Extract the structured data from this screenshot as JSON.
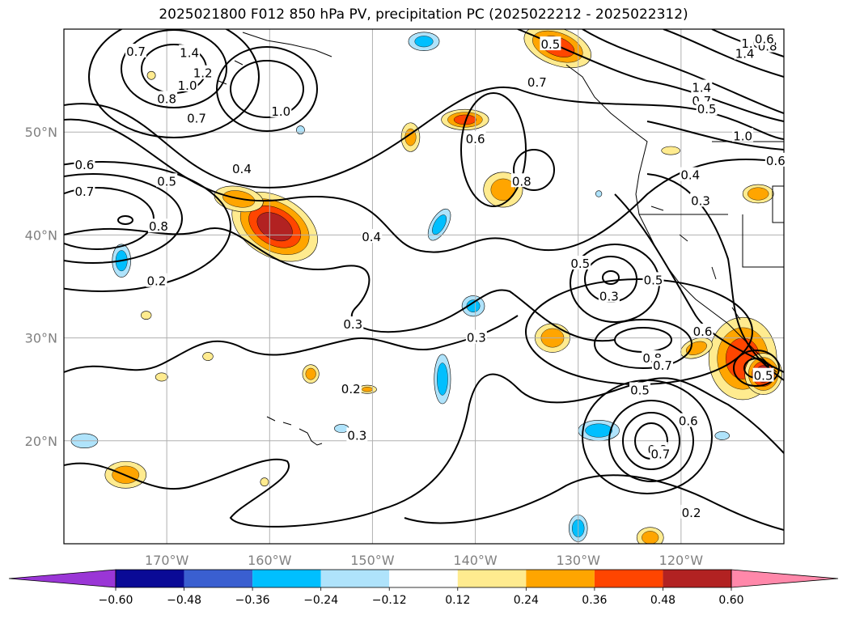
{
  "title": "2025021800 F012 850 hPa PV, precipitation PC (2025022212 - 2025022312)",
  "map": {
    "lon_range": [
      -180,
      -110
    ],
    "lat_range": [
      10,
      60
    ],
    "lon_ticks": [
      {
        "value": -170,
        "label": "170°W"
      },
      {
        "value": -160,
        "label": "160°W"
      },
      {
        "value": -150,
        "label": "150°W"
      },
      {
        "value": -140,
        "label": "140°W"
      },
      {
        "value": -130,
        "label": "130°W"
      },
      {
        "value": -120,
        "label": "120°W"
      }
    ],
    "lat_ticks": [
      {
        "value": 20,
        "label": "20°N"
      },
      {
        "value": 30,
        "label": "30°N"
      },
      {
        "value": 40,
        "label": "40°N"
      },
      {
        "value": 50,
        "label": "50°N"
      }
    ],
    "grid": true,
    "contour_labels": [
      {
        "text": "1.4",
        "lon": -167.8,
        "lat": 57.7
      },
      {
        "text": "1.2",
        "lon": -166.5,
        "lat": 55.7
      },
      {
        "text": "1.0",
        "lon": -168.0,
        "lat": 54.5
      },
      {
        "text": "0.8",
        "lon": -170.0,
        "lat": 53.2
      },
      {
        "text": "0.7",
        "lon": -173.0,
        "lat": 57.8
      },
      {
        "text": "0.7",
        "lon": -167.1,
        "lat": 51.3
      },
      {
        "text": "1.0",
        "lon": -158.9,
        "lat": 52.0
      },
      {
        "text": "0.4",
        "lon": -162.7,
        "lat": 46.4
      },
      {
        "text": "0.5",
        "lon": -170.0,
        "lat": 45.2
      },
      {
        "text": "0.8",
        "lon": -170.8,
        "lat": 40.8
      },
      {
        "text": "0.6",
        "lon": -178.0,
        "lat": 46.8
      },
      {
        "text": "0.7",
        "lon": -178.0,
        "lat": 44.2
      },
      {
        "text": "0.2",
        "lon": -171.0,
        "lat": 35.5
      },
      {
        "text": "0.4",
        "lon": -150.1,
        "lat": 39.8
      },
      {
        "text": "0.3",
        "lon": -151.9,
        "lat": 31.3
      },
      {
        "text": "0.2",
        "lon": -152.1,
        "lat": 25.0
      },
      {
        "text": "0.3",
        "lon": -151.5,
        "lat": 20.5
      },
      {
        "text": "0.3",
        "lon": -139.9,
        "lat": 30.0
      },
      {
        "text": "0.6",
        "lon": -140.0,
        "lat": 49.3
      },
      {
        "text": "0.8",
        "lon": -135.5,
        "lat": 45.2
      },
      {
        "text": "0.7",
        "lon": -134.0,
        "lat": 54.8
      },
      {
        "text": "0.5",
        "lon": -132.7,
        "lat": 58.5
      },
      {
        "text": "0.5",
        "lon": -129.8,
        "lat": 37.2
      },
      {
        "text": "0.3",
        "lon": -127.0,
        "lat": 34.0
      },
      {
        "text": "0.5",
        "lon": -122.7,
        "lat": 35.6
      },
      {
        "text": "0.6",
        "lon": -117.9,
        "lat": 30.6
      },
      {
        "text": "0.8",
        "lon": -122.8,
        "lat": 28.0
      },
      {
        "text": "0.7",
        "lon": -121.8,
        "lat": 27.3
      },
      {
        "text": "0.5",
        "lon": -124.0,
        "lat": 24.9
      },
      {
        "text": "0.6",
        "lon": -119.3,
        "lat": 21.9
      },
      {
        "text": "0.8",
        "lon": -122.3,
        "lat": 19.1
      },
      {
        "text": "0.7",
        "lon": -122.0,
        "lat": 18.7
      },
      {
        "text": "0.2",
        "lon": -119.0,
        "lat": 13.0
      },
      {
        "text": "0.4",
        "lon": -119.1,
        "lat": 45.8
      },
      {
        "text": "0.3",
        "lon": -118.1,
        "lat": 43.3
      },
      {
        "text": "1.4",
        "lon": -118.0,
        "lat": 54.3
      },
      {
        "text": "0.7",
        "lon": -118.0,
        "lat": 53.0
      },
      {
        "text": "0.5",
        "lon": -117.5,
        "lat": 52.2
      },
      {
        "text": "1.0",
        "lon": -114.0,
        "lat": 49.6
      },
      {
        "text": "0.6",
        "lon": -110.8,
        "lat": 47.2
      },
      {
        "text": "1.4",
        "lon": -113.8,
        "lat": 57.6
      },
      {
        "text": "1.0",
        "lon": -113.2,
        "lat": 58.6
      },
      {
        "text": "0.8",
        "lon": -111.6,
        "lat": 58.3
      },
      {
        "text": "0.6",
        "lon": -111.9,
        "lat": 59.0
      },
      {
        "text": "0.5",
        "lon": -112.0,
        "lat": 26.3
      }
    ]
  },
  "chart_data": {
    "type": "heatmap",
    "title": "2025021800 F012 850 hPa PV, precipitation PC (2025022212 - 2025022312)",
    "fields": [
      "precipitation PC (shaded)",
      "850 hPa PV (contours)"
    ],
    "colorbar": {
      "bounds": [
        -0.6,
        -0.48,
        -0.36,
        -0.24,
        -0.12,
        0.12,
        0.24,
        0.36,
        0.48,
        0.6
      ],
      "tick_labels": [
        "−0.60",
        "−0.48",
        "−0.36",
        "−0.24",
        "−0.12",
        "0.12",
        "0.24",
        "0.36",
        "0.48",
        "0.60"
      ],
      "colors": [
        "#9a36d6",
        "#0a0a96",
        "#3a5fd0",
        "#00bfff",
        "#afe3fb",
        "#ffffff",
        "#ffeb8f",
        "#ffa500",
        "#ff4500",
        "#b22222",
        "#ff88aa"
      ],
      "extend": "both"
    },
    "contour_levels": [
      0.2,
      0.3,
      0.4,
      0.5,
      0.6,
      0.7,
      0.8,
      1.0,
      1.2,
      1.4
    ],
    "precip_features": [
      {
        "lon": -159.5,
        "lat": 40.8,
        "rx": 4.5,
        "ry": 2.9,
        "rot": 30,
        "value": 0.5
      },
      {
        "lon": -163.0,
        "lat": 43.5,
        "rx": 2.4,
        "ry": 1.2,
        "rot": 10,
        "value": 0.3
      },
      {
        "lon": -141.0,
        "lat": 51.2,
        "rx": 2.3,
        "ry": 1.0,
        "rot": 0,
        "value": 0.38
      },
      {
        "lon": -146.3,
        "lat": 49.5,
        "rx": 0.9,
        "ry": 1.4,
        "rot": 0,
        "value": 0.26
      },
      {
        "lon": -137.3,
        "lat": 44.4,
        "rx": 1.9,
        "ry": 1.7,
        "rot": 0,
        "value": 0.28
      },
      {
        "lon": -132.0,
        "lat": 58.3,
        "rx": 3.4,
        "ry": 1.8,
        "rot": 20,
        "value": 0.4
      },
      {
        "lon": -143.5,
        "lat": 41.0,
        "rx": 0.8,
        "ry": 1.7,
        "rot": 30,
        "value": -0.28
      },
      {
        "lon": -174.4,
        "lat": 37.5,
        "rx": 0.9,
        "ry": 1.6,
        "rot": 0,
        "value": -0.28
      },
      {
        "lon": -140.2,
        "lat": 33.1,
        "rx": 1.1,
        "ry": 1.0,
        "rot": 0,
        "value": -0.26
      },
      {
        "lon": -143.2,
        "lat": 26.0,
        "rx": 0.8,
        "ry": 2.4,
        "rot": 0,
        "value": -0.3
      },
      {
        "lon": -128.0,
        "lat": 21.0,
        "rx": 2.0,
        "ry": 1.0,
        "rot": 0,
        "value": -0.3
      },
      {
        "lon": -178.0,
        "lat": 20.0,
        "rx": 1.3,
        "ry": 0.7,
        "rot": 0,
        "value": -0.2
      },
      {
        "lon": -130.0,
        "lat": 11.5,
        "rx": 0.9,
        "ry": 1.3,
        "rot": 0,
        "value": -0.3
      },
      {
        "lon": -128.0,
        "lat": 44.0,
        "rx": 0.3,
        "ry": 0.3,
        "rot": 0,
        "value": -0.2
      },
      {
        "lon": -157.0,
        "lat": 50.2,
        "rx": 0.4,
        "ry": 0.4,
        "rot": 0,
        "value": -0.2
      },
      {
        "lon": -153.0,
        "lat": 21.2,
        "rx": 0.7,
        "ry": 0.4,
        "rot": 0,
        "value": -0.15
      },
      {
        "lon": -132.5,
        "lat": 30.0,
        "rx": 1.7,
        "ry": 1.4,
        "rot": 0,
        "value": 0.3
      },
      {
        "lon": -114.0,
        "lat": 28.0,
        "rx": 3.3,
        "ry": 4.0,
        "rot": 0,
        "value": 0.4
      },
      {
        "lon": -112.0,
        "lat": 26.5,
        "rx": 1.8,
        "ry": 2.0,
        "rot": 0,
        "value": 0.5
      },
      {
        "lon": -118.5,
        "lat": 29.0,
        "rx": 1.6,
        "ry": 0.9,
        "rot": -20,
        "value": 0.3
      },
      {
        "lon": -112.5,
        "lat": 44.0,
        "rx": 1.5,
        "ry": 0.9,
        "rot": 0,
        "value": 0.32
      },
      {
        "lon": -123.0,
        "lat": 10.6,
        "rx": 1.3,
        "ry": 1.0,
        "rot": 0,
        "value": 0.28
      },
      {
        "lon": -174.0,
        "lat": 16.7,
        "rx": 2.0,
        "ry": 1.3,
        "rot": 0,
        "value": 0.3
      },
      {
        "lon": -150.5,
        "lat": 25.0,
        "rx": 0.9,
        "ry": 0.4,
        "rot": 0,
        "value": 0.25
      },
      {
        "lon": -156.0,
        "lat": 26.5,
        "rx": 0.8,
        "ry": 0.9,
        "rot": 0,
        "value": 0.28
      },
      {
        "lon": -171.5,
        "lat": 55.5,
        "rx": 0.4,
        "ry": 0.4,
        "rot": 0,
        "value": 0.2
      },
      {
        "lon": -172.0,
        "lat": 32.2,
        "rx": 0.5,
        "ry": 0.4,
        "rot": 0,
        "value": 0.2
      },
      {
        "lon": -170.5,
        "lat": 26.2,
        "rx": 0.6,
        "ry": 0.4,
        "rot": 0,
        "value": 0.2
      },
      {
        "lon": -166.0,
        "lat": 28.2,
        "rx": 0.5,
        "ry": 0.4,
        "rot": 0,
        "value": 0.2
      },
      {
        "lon": -160.5,
        "lat": 16.0,
        "rx": 0.4,
        "ry": 0.4,
        "rot": 0,
        "value": 0.2
      },
      {
        "lon": -121.0,
        "lat": 48.2,
        "rx": 0.9,
        "ry": 0.4,
        "rot": 0,
        "value": 0.18
      },
      {
        "lon": -145.0,
        "lat": 58.8,
        "rx": 1.5,
        "ry": 0.9,
        "rot": 0,
        "value": -0.26
      },
      {
        "lon": -116.0,
        "lat": 20.5,
        "rx": 0.7,
        "ry": 0.4,
        "rot": 0,
        "value": -0.2
      }
    ]
  },
  "colors": {
    "contour": "#000000",
    "coast": "#000000",
    "grid": "#b0b0b0",
    "tick_text": "#808080"
  }
}
